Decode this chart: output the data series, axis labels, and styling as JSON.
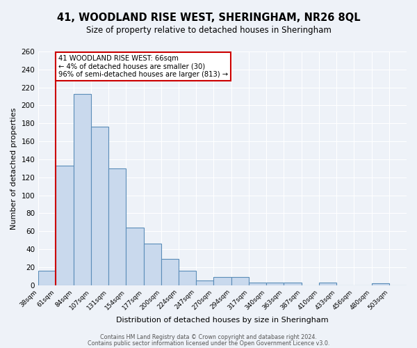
{
  "title": "41, WOODLAND RISE WEST, SHERINGHAM, NR26 8QL",
  "subtitle": "Size of property relative to detached houses in Sheringham",
  "xlabel": "Distribution of detached houses by size in Sheringham",
  "ylabel": "Number of detached properties",
  "bin_labels": [
    "38sqm",
    "61sqm",
    "84sqm",
    "107sqm",
    "131sqm",
    "154sqm",
    "177sqm",
    "200sqm",
    "224sqm",
    "247sqm",
    "270sqm",
    "294sqm",
    "317sqm",
    "340sqm",
    "363sqm",
    "387sqm",
    "410sqm",
    "433sqm",
    "456sqm",
    "480sqm",
    "503sqm"
  ],
  "bar_heights": [
    16,
    133,
    213,
    176,
    130,
    64,
    46,
    29,
    16,
    5,
    9,
    9,
    3,
    3,
    3,
    0,
    3,
    0,
    0,
    2,
    0
  ],
  "bar_color": "#c9d9ed",
  "bar_edge_color": "#5b8db8",
  "ylim": [
    0,
    260
  ],
  "yticks": [
    0,
    20,
    40,
    60,
    80,
    100,
    120,
    140,
    160,
    180,
    200,
    220,
    240,
    260
  ],
  "red_line_x": 1,
  "annotation_text": "41 WOODLAND RISE WEST: 66sqm\n← 4% of detached houses are smaller (30)\n96% of semi-detached houses are larger (813) →",
  "annotation_box_color": "#ffffff",
  "annotation_box_edge_color": "#cc0000",
  "footer_line1": "Contains HM Land Registry data © Crown copyright and database right 2024.",
  "footer_line2": "Contains public sector information licensed under the Open Government Licence v3.0.",
  "background_color": "#eef2f8",
  "grid_color": "#ffffff",
  "title_fontsize": 10.5,
  "subtitle_fontsize": 8.5
}
